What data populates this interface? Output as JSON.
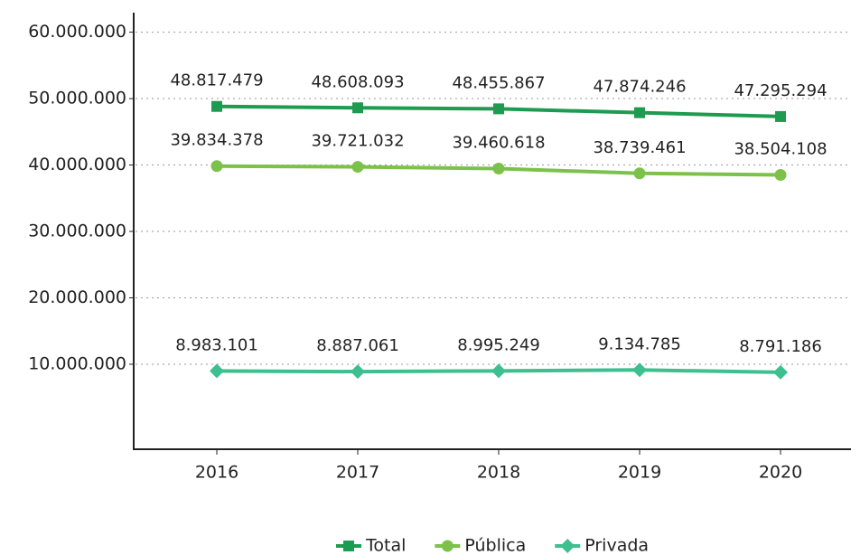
{
  "chart_data": {
    "type": "line",
    "categories": [
      "2016",
      "2017",
      "2018",
      "2019",
      "2020"
    ],
    "series": [
      {
        "name": "Total",
        "color": "#1e9b50",
        "marker": "square",
        "values": [
          48817479,
          48608093,
          48455867,
          47874246,
          47295294
        ],
        "value_labels": [
          "48.817.479",
          "48.608.093",
          "48.455.867",
          "47.874.246",
          "47.295.294"
        ]
      },
      {
        "name": "Pública",
        "color": "#7cc24a",
        "marker": "circle",
        "values": [
          39834378,
          39721032,
          39460618,
          38739461,
          38504108
        ],
        "value_labels": [
          "39.834.378",
          "39.721.032",
          "39.460.618",
          "38.739.461",
          "38.504.108"
        ]
      },
      {
        "name": "Privada",
        "color": "#3dbf8f",
        "marker": "diamond",
        "values": [
          8983101,
          8887061,
          8995249,
          9134785,
          8791186
        ],
        "value_labels": [
          "8.983.101",
          "8.887.061",
          "8.995.249",
          "9.134.785",
          "8.791.186"
        ]
      }
    ],
    "ylim": [
      -2800000,
      62800000
    ],
    "yticks": [
      {
        "value": 10000000,
        "label": "10.000.000"
      },
      {
        "value": 20000000,
        "label": "20.000.000"
      },
      {
        "value": 30000000,
        "label": "30.000.000"
      },
      {
        "value": 40000000,
        "label": "40.000.000"
      },
      {
        "value": 50000000,
        "label": "50.000.000"
      },
      {
        "value": 60000000,
        "label": "60.000.000"
      }
    ],
    "grid": true,
    "legend": "bottom"
  }
}
